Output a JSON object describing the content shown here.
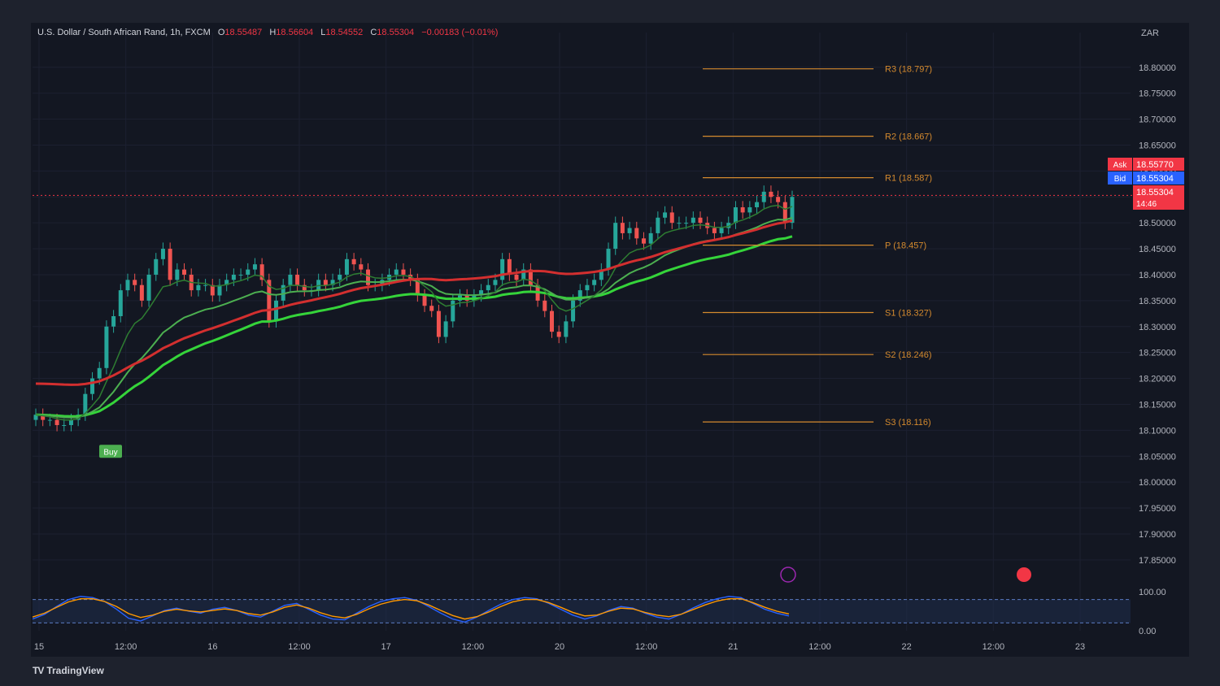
{
  "header": {
    "symbol": "U.S. Dollar / South African Rand, 1h, FXCM",
    "o_label": "O",
    "o_value": "18.55487",
    "h_label": "H",
    "h_value": "18.56604",
    "l_label": "L",
    "l_value": "18.54552",
    "c_label": "C",
    "c_value": "18.55304",
    "change": "−0.00183 (−0.01%)"
  },
  "currency": "ZAR",
  "price_tags": {
    "ask_label": "Ask",
    "ask_value": "18.55770",
    "bid_label": "Bid",
    "bid_value": "18.55304",
    "last_value": "18.55304",
    "countdown": "14:46"
  },
  "buy_label": "Buy",
  "brand": {
    "logo": "TV",
    "name": "TradingView"
  },
  "colors": {
    "up": "#26a69a",
    "down": "#ef5350",
    "pivot": "#d48a2e",
    "ema_bright": "#35d43a",
    "ema_mid": "#4caf50",
    "ema_red": "#d32f2f",
    "osc_k": "#2962ff",
    "osc_d": "#ff9800",
    "bg": "#131722"
  },
  "chart_data": {
    "type": "candlestick",
    "y_ticks": [
      "18.80000",
      "18.75000",
      "18.70000",
      "18.65000",
      "18.60000",
      "18.55000",
      "18.50000",
      "18.45000",
      "18.40000",
      "18.35000",
      "18.30000",
      "18.25000",
      "18.20000",
      "18.15000",
      "18.10000",
      "18.05000",
      "18.00000",
      "17.95000",
      "17.90000",
      "17.85000"
    ],
    "ylim": [
      17.82,
      18.82
    ],
    "x_ticks": [
      "15",
      "12:00",
      "16",
      "12:00",
      "17",
      "12:00",
      "20",
      "12:00",
      "21",
      "12:00",
      "22",
      "12:00",
      "23"
    ],
    "pivots": [
      {
        "label": "R3 (18.797)",
        "value": 18.797
      },
      {
        "label": "R2 (18.667)",
        "value": 18.667
      },
      {
        "label": "R1 (18.587)",
        "value": 18.587
      },
      {
        "label": "P (18.457)",
        "value": 18.457
      },
      {
        "label": "S1 (18.327)",
        "value": 18.327
      },
      {
        "label": "S2 (18.246)",
        "value": 18.246
      },
      {
        "label": "S3 (18.116)",
        "value": 18.116
      }
    ],
    "closes": [
      18.13,
      18.12,
      18.12,
      18.11,
      18.11,
      18.12,
      18.13,
      18.17,
      18.2,
      18.22,
      18.3,
      18.32,
      18.37,
      18.39,
      18.38,
      18.35,
      18.4,
      18.43,
      18.45,
      18.39,
      18.41,
      18.4,
      18.37,
      18.38,
      18.38,
      18.36,
      18.38,
      18.39,
      18.4,
      18.4,
      18.41,
      18.42,
      18.39,
      18.31,
      18.35,
      18.38,
      18.4,
      18.38,
      18.37,
      18.37,
      18.39,
      18.38,
      18.39,
      18.4,
      18.43,
      18.42,
      18.41,
      18.38,
      18.38,
      18.39,
      18.4,
      18.41,
      18.4,
      18.39,
      18.36,
      18.34,
      18.33,
      18.28,
      18.31,
      18.35,
      18.36,
      18.35,
      18.36,
      18.37,
      18.38,
      18.39,
      18.43,
      18.4,
      18.39,
      18.41,
      18.38,
      18.35,
      18.33,
      18.29,
      18.28,
      18.31,
      18.35,
      18.37,
      18.38,
      18.39,
      18.41,
      18.45,
      18.5,
      18.48,
      18.49,
      18.47,
      18.46,
      18.48,
      18.51,
      18.52,
      18.5,
      18.5,
      18.5,
      18.51,
      18.5,
      18.49,
      18.48,
      18.49,
      18.5,
      18.53,
      18.52,
      18.53,
      18.54,
      18.56,
      18.55,
      18.54,
      18.5,
      18.55
    ],
    "oscillator": {
      "ylim": [
        0,
        100
      ],
      "y_ticks": [
        "100.00",
        "0.00"
      ],
      "k": [
        30,
        42,
        62,
        80,
        88,
        85,
        75,
        55,
        32,
        25,
        38,
        52,
        58,
        50,
        45,
        55,
        60,
        52,
        40,
        35,
        50,
        65,
        70,
        55,
        40,
        30,
        28,
        45,
        62,
        75,
        82,
        85,
        78,
        62,
        45,
        30,
        22,
        35,
        52,
        68,
        80,
        85,
        82,
        70,
        55,
        40,
        30,
        38,
        52,
        62,
        58,
        45,
        35,
        30,
        42,
        58,
        72,
        82,
        88,
        85,
        70,
        55,
        45,
        38
      ],
      "d": [
        35,
        45,
        60,
        74,
        82,
        82,
        75,
        62,
        44,
        34,
        40,
        50,
        55,
        51,
        48,
        52,
        56,
        52,
        44,
        40,
        48,
        60,
        66,
        58,
        46,
        37,
        33,
        42,
        56,
        68,
        76,
        80,
        77,
        66,
        52,
        39,
        30,
        36,
        48,
        62,
        74,
        80,
        80,
        72,
        60,
        47,
        38,
        40,
        50,
        58,
        56,
        47,
        40,
        36,
        42,
        54,
        66,
        76,
        82,
        82,
        72,
        60,
        50,
        43
      ]
    }
  }
}
